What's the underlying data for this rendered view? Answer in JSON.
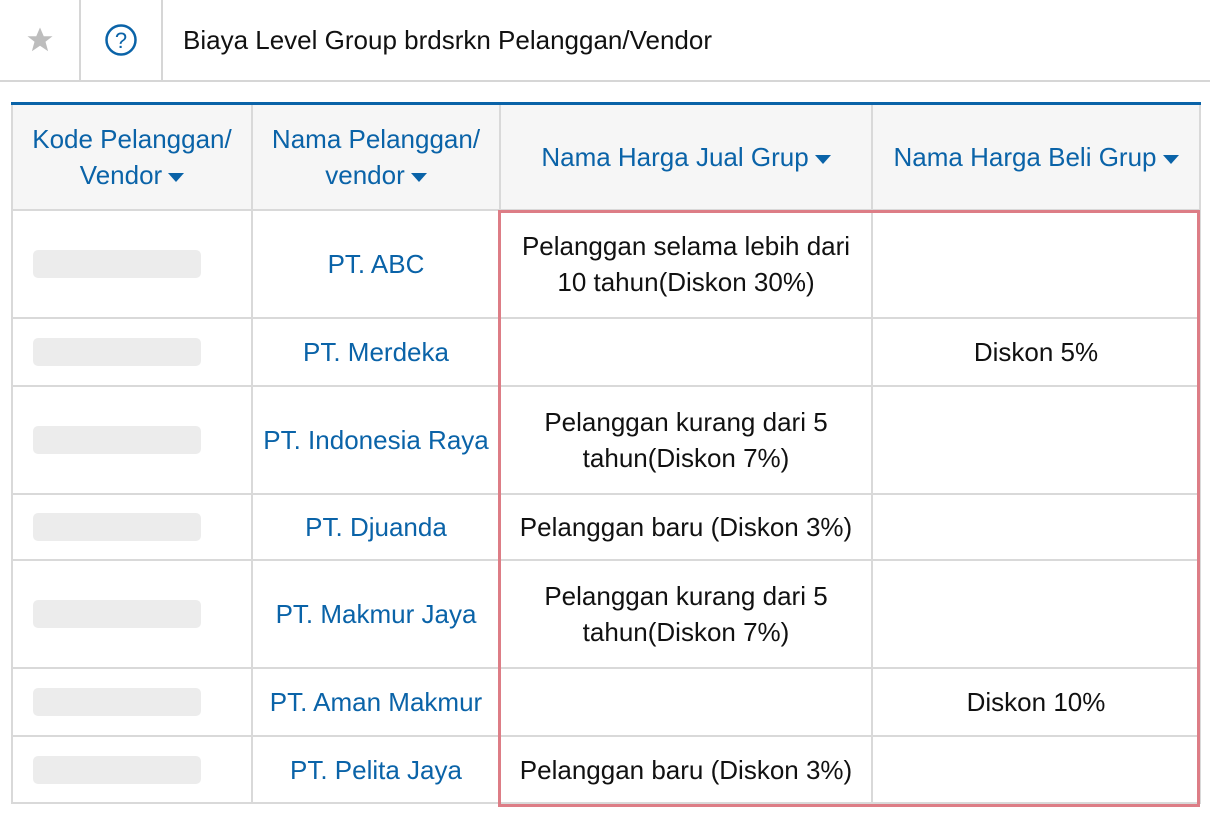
{
  "header": {
    "title": "Biaya Level Group brdsrkn Pelanggan/Vendor",
    "icons": [
      "star-icon",
      "help-circle-icon"
    ]
  },
  "table": {
    "columns": [
      {
        "label": "Kode Pelanggan/ Vendor"
      },
      {
        "label": "Nama Pelanggan/ vendor"
      },
      {
        "label": "Nama Harga Jual Grup"
      },
      {
        "label": "Nama Harga Beli Grup"
      }
    ],
    "rows": [
      {
        "name": "PT. ABC",
        "jual": "Pelanggan selama lebih dari 10 tahun(Diskon 30%)",
        "beli": ""
      },
      {
        "name": "PT. Merdeka",
        "jual": "",
        "beli": "Diskon 5%"
      },
      {
        "name": "PT. Indonesia Raya",
        "jual": "Pelanggan  kurang dari 5 tahun(Diskon 7%)",
        "beli": ""
      },
      {
        "name": "PT. Djuanda",
        "jual": "Pelanggan baru (Diskon 3%)",
        "beli": ""
      },
      {
        "name": "PT. Makmur Jaya",
        "jual": "Pelanggan  kurang dari 5 tahun(Diskon 7%)",
        "beli": ""
      },
      {
        "name": "PT. Aman Makmur",
        "jual": "",
        "beli": "Diskon 10%"
      },
      {
        "name": "PT. Pelita Jaya",
        "jual": "Pelanggan baru (Diskon 3%)",
        "beli": ""
      }
    ]
  },
  "colors": {
    "accent": "#0a63a8",
    "highlight": "#dd7d86"
  }
}
